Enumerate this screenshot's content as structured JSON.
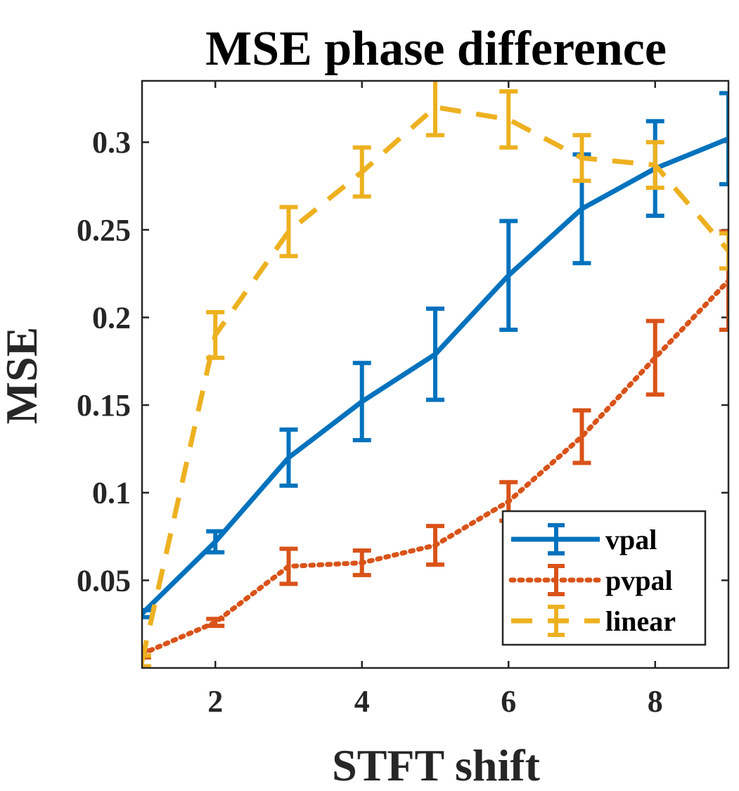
{
  "chart_data": {
    "type": "line",
    "title": "MSE phase difference",
    "xlabel": "STFT shift",
    "ylabel": "MSE",
    "xlim": [
      1,
      9
    ],
    "ylim": [
      0,
      0.335
    ],
    "xticks": [
      2,
      4,
      6,
      8
    ],
    "yticks": [
      0.05,
      0.1,
      0.15,
      0.2,
      0.25,
      0.3
    ],
    "xtick_labels": [
      "2",
      "4",
      "6",
      "8"
    ],
    "ytick_labels": [
      "0.05",
      "0.1",
      "0.15",
      "0.2",
      "0.25",
      "0.3"
    ],
    "x": [
      1,
      2,
      3,
      4,
      5,
      6,
      7,
      8,
      9
    ],
    "legend_position": "bottom-right",
    "series": [
      {
        "name": "vpal",
        "color": "#0072BD",
        "style": "solid",
        "values": [
          0.031,
          0.072,
          0.12,
          0.152,
          0.179,
          0.224,
          0.262,
          0.285,
          0.302
        ],
        "errors": [
          0.002,
          0.006,
          0.016,
          0.022,
          0.026,
          0.031,
          0.031,
          0.027,
          0.026
        ]
      },
      {
        "name": "pvpal",
        "color": "#D95319",
        "style": "dotted",
        "values": [
          0.008,
          0.026,
          0.058,
          0.06,
          0.07,
          0.095,
          0.132,
          0.177,
          0.221
        ],
        "errors": [
          0.002,
          0.002,
          0.01,
          0.007,
          0.011,
          0.011,
          0.015,
          0.021,
          0.028
        ]
      },
      {
        "name": "linear",
        "color": "#EDB120",
        "style": "dashed",
        "values": [
          0.004,
          0.19,
          0.249,
          0.283,
          0.32,
          0.313,
          0.291,
          0.287,
          0.238
        ],
        "errors": [
          0.003,
          0.013,
          0.014,
          0.014,
          0.016,
          0.016,
          0.013,
          0.013,
          0.01
        ]
      }
    ]
  }
}
